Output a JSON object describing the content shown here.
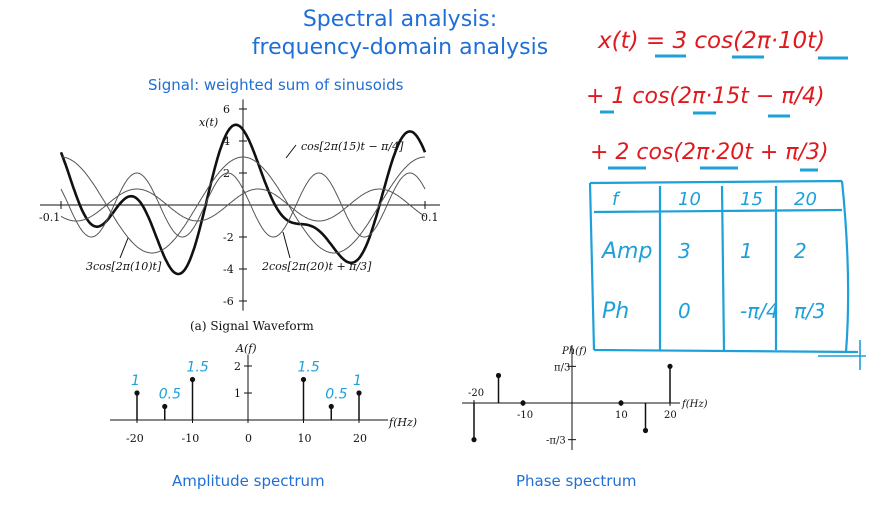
{
  "slide": {
    "title_line1": "Spectral analysis:",
    "title_line2": "frequency-domain analysis",
    "subtitle": "Signal: weighted sum of sinusoids",
    "amp_caption": "Amplitude spectrum",
    "phase_caption": "Phase spectrum"
  },
  "colors": {
    "accent": "#1f6fd6",
    "red_ink": "#e0191f",
    "cyan_ink": "#1ea0d8"
  },
  "handwriting": {
    "eq_line1": "x(t) = 3 cos(2π·10t)",
    "eq_line2": "+ 1 cos(2π·15t − π/4)",
    "eq_line3": "+ 2 cos(2π·20t + π/3)"
  },
  "table": {
    "headers": [
      "f",
      "10",
      "15",
      "20"
    ],
    "rows": [
      [
        "Amp",
        "3",
        "1",
        "2"
      ],
      [
        "Ph",
        "0",
        "-π/4",
        "π/3"
      ]
    ]
  },
  "chart_data": [
    {
      "type": "line",
      "title": "(a) Signal Waveform",
      "xlim": [
        -0.1,
        0.1
      ],
      "ylim": [
        -6,
        6
      ],
      "x_ticks": [
        "-0.1",
        "0.1"
      ],
      "y_ticks": [
        "6",
        "4",
        "2",
        "-2",
        "-4",
        "-6"
      ],
      "series": [
        {
          "name": "x(t)",
          "expr": "3cos(2π·10t) + cos(2π·15t − π/4) + 2cos(2π·20t + π/3)",
          "bold": true
        },
        {
          "name": "3cos[2π(10)t]",
          "amplitude": 3,
          "freq": 10,
          "phase": 0
        },
        {
          "name": "cos[2π(15)t − π/4]",
          "amplitude": 1,
          "freq": 15,
          "phase": -0.7854
        },
        {
          "name": "2cos[2π(20)t + π/3]",
          "amplitude": 2,
          "freq": 20,
          "phase": 1.0472
        }
      ]
    },
    {
      "type": "stem",
      "ylabel": "A(f)",
      "xlabel": "f(Hz)",
      "x_ticks": [
        "-20",
        "-10",
        "0",
        "10",
        "20"
      ],
      "y_ticks": [
        "2",
        "1"
      ],
      "x": [
        -20,
        -15,
        -10,
        10,
        15,
        20
      ],
      "values": [
        1,
        0.5,
        1.5,
        1.5,
        0.5,
        1
      ],
      "annotations": [
        "1",
        "0.5",
        "1.5",
        "1.5",
        "0.5",
        "1"
      ]
    },
    {
      "type": "stem",
      "ylabel": "Ph(f)",
      "xlabel": "f(Hz)",
      "x_ticks": [
        "-20",
        "-10",
        "10",
        "20"
      ],
      "y_ticks": [
        "π/3",
        "-π/3"
      ],
      "x": [
        -20,
        -15,
        -10,
        10,
        15,
        20
      ],
      "values": [
        -1.0472,
        0.7854,
        0,
        0,
        -0.7854,
        1.0472
      ]
    }
  ]
}
